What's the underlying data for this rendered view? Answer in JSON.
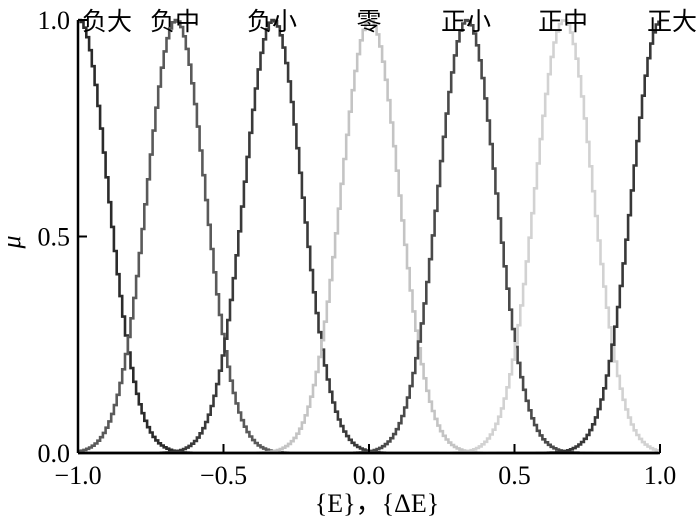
{
  "chart_data": {
    "type": "line",
    "xlabel": "{E}，{ΔE}",
    "ylabel": "μ",
    "xlim": [
      -1.0,
      1.0
    ],
    "ylim": [
      0.0,
      1.0
    ],
    "x_ticks": [
      "−1.0",
      "−0.5",
      "0.0",
      "0.5",
      "1.0"
    ],
    "x_tick_values": [
      -1.0,
      -0.5,
      0.0,
      0.5,
      1.0
    ],
    "y_ticks": [
      "0.0",
      "0.5",
      "1.0"
    ],
    "y_tick_values": [
      0.0,
      0.5,
      1.0
    ],
    "grid": false,
    "membership_shape": "gaussian",
    "sigma": 0.1,
    "series": [
      {
        "name": "负大",
        "center": -1.0,
        "color": "#2b2b2b"
      },
      {
        "name": "负中",
        "center": -0.6667,
        "color": "#5a5a5a"
      },
      {
        "name": "负小",
        "center": -0.3333,
        "color": "#3a3a3a"
      },
      {
        "name": "零",
        "center": 0.0,
        "color": "#c4c4c4"
      },
      {
        "name": "正小",
        "center": 0.3333,
        "color": "#4a4a4a"
      },
      {
        "name": "正中",
        "center": 0.6667,
        "color": "#d2d2d2"
      },
      {
        "name": "正大",
        "center": 1.0,
        "color": "#383838"
      }
    ]
  }
}
